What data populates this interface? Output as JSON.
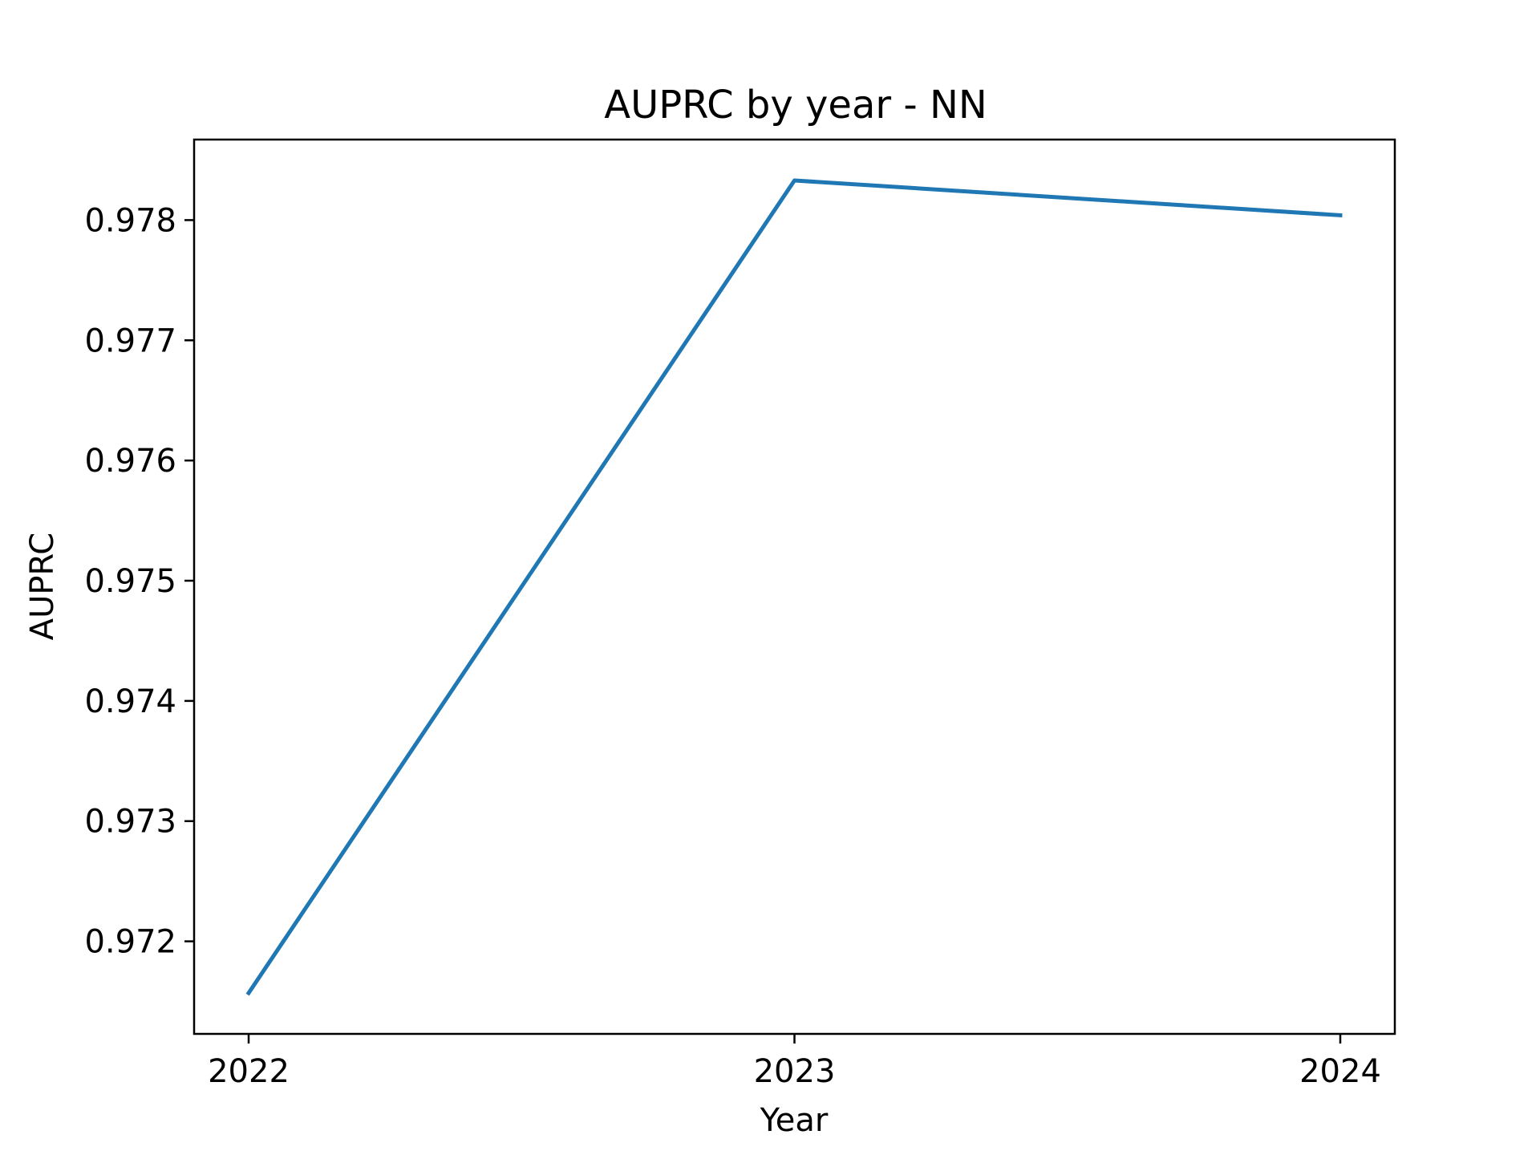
{
  "chart_data": {
    "type": "line",
    "title": "AUPRC by year - NN",
    "xlabel": "Year",
    "ylabel": "AUPRC",
    "x": [
      "2022",
      "2023",
      "2024"
    ],
    "series": [
      {
        "values": [
          0.97157,
          0.97833,
          0.97804
        ],
        "color": "#1f77b4"
      }
    ],
    "ylim": [
      0.97123,
      0.97867
    ],
    "yticks": [
      "0.972",
      "0.973",
      "0.974",
      "0.975",
      "0.976",
      "0.977",
      "0.978"
    ],
    "grid": false,
    "legend": "none"
  }
}
